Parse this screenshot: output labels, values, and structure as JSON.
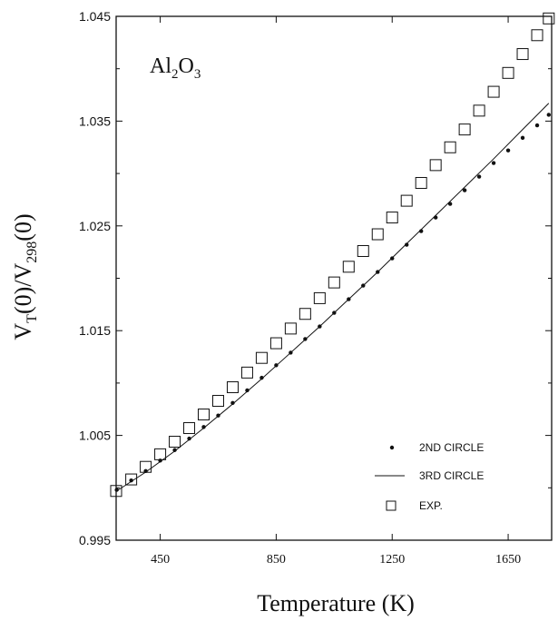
{
  "chart_data": {
    "type": "scatter",
    "title": "",
    "annotation": {
      "base": "Al",
      "sub1": "2",
      "mid": "O",
      "sub2": "3"
    },
    "ylabel": {
      "main": "V",
      "sub1": "T",
      "mid": "(0)/V",
      "sub2": "298",
      "end": "(0)"
    },
    "xlabel": "Temperature (K)",
    "xlim": [
      298,
      1800
    ],
    "ylim": [
      0.995,
      1.045
    ],
    "x_ticks": [
      450,
      850,
      1250,
      1650
    ],
    "y_ticks": [
      0.995,
      1.005,
      1.015,
      1.025,
      1.035,
      1.045
    ],
    "x_tick_labels": [
      "450",
      "850",
      "1250",
      "1650"
    ],
    "y_tick_labels": [
      "0.995",
      "1.005",
      "1.015",
      "1.025",
      "1.035",
      "1.045"
    ],
    "legend_position": "bottom-right",
    "series": [
      {
        "name": "2ND CIRCLE",
        "marker": "dot",
        "x": [
          300,
          350,
          400,
          450,
          500,
          550,
          600,
          650,
          700,
          750,
          800,
          850,
          900,
          950,
          1000,
          1050,
          1100,
          1150,
          1200,
          1250,
          1300,
          1350,
          1400,
          1450,
          1500,
          1550,
          1600,
          1650,
          1700,
          1750,
          1790
        ],
        "y": [
          0.9998,
          1.0007,
          1.0016,
          1.0026,
          1.0036,
          1.0047,
          1.0058,
          1.0069,
          1.0081,
          1.0093,
          1.0105,
          1.0117,
          1.0129,
          1.0142,
          1.0154,
          1.0167,
          1.018,
          1.0193,
          1.0206,
          1.0219,
          1.0232,
          1.0245,
          1.0258,
          1.0271,
          1.0284,
          1.0297,
          1.031,
          1.0322,
          1.0334,
          1.0346,
          1.0356
        ]
      },
      {
        "name": "3RD CIRCLE",
        "marker": "line",
        "x": [
          300,
          400,
          500,
          600,
          700,
          800,
          900,
          1000,
          1100,
          1200,
          1300,
          1400,
          1500,
          1600,
          1700,
          1790
        ],
        "y": [
          0.9997,
          1.0015,
          1.0035,
          1.0057,
          1.008,
          1.0104,
          1.0129,
          1.0154,
          1.018,
          1.0206,
          1.0233,
          1.026,
          1.0287,
          1.0314,
          1.0342,
          1.0367
        ]
      },
      {
        "name": "EXP.",
        "marker": "square",
        "x": [
          298,
          350,
          400,
          450,
          500,
          550,
          600,
          650,
          700,
          750,
          800,
          850,
          900,
          950,
          1000,
          1050,
          1100,
          1150,
          1200,
          1250,
          1300,
          1350,
          1400,
          1450,
          1500,
          1550,
          1600,
          1650,
          1700,
          1750,
          1790
        ],
        "y": [
          0.9997,
          1.0008,
          1.002,
          1.0032,
          1.0044,
          1.0057,
          1.007,
          1.0083,
          1.0096,
          1.011,
          1.0124,
          1.0138,
          1.0152,
          1.0166,
          1.0181,
          1.0196,
          1.0211,
          1.0226,
          1.0242,
          1.0258,
          1.0274,
          1.0291,
          1.0308,
          1.0325,
          1.0342,
          1.036,
          1.0378,
          1.0396,
          1.0414,
          1.0432,
          1.0448
        ]
      }
    ]
  }
}
